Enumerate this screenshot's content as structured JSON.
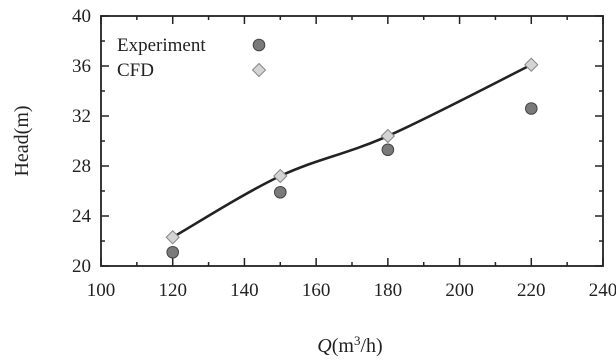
{
  "chart_data": {
    "type": "scatter",
    "title": "",
    "xlabel": {
      "italic": "Q",
      "rest": "(m",
      "sup": "3",
      "tail": "/h)"
    },
    "ylabel": "Head(m)",
    "xlim": [
      100,
      240
    ],
    "ylim": [
      20,
      40
    ],
    "xticks": [
      100,
      120,
      140,
      160,
      180,
      200,
      220,
      240
    ],
    "yticks": [
      20,
      24,
      28,
      32,
      36,
      40
    ],
    "grid": false,
    "legend_position": "top-left",
    "series": [
      {
        "name": "Experiment",
        "marker": "circle",
        "color": "#7a7a7a",
        "x": [
          120,
          150,
          180,
          220
        ],
        "y": [
          21.1,
          25.9,
          29.3,
          32.6
        ]
      },
      {
        "name": "CFD",
        "marker": "diamond",
        "color": "#d4d4d4",
        "x": [
          120,
          150,
          180,
          220
        ],
        "y": [
          22.3,
          27.2,
          30.4,
          36.1
        ]
      }
    ],
    "fit_line": {
      "color": "#222222"
    }
  }
}
